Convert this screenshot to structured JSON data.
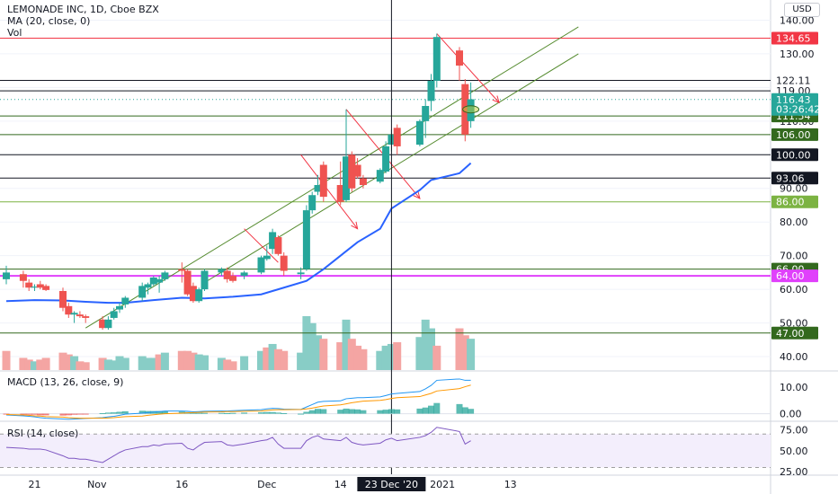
{
  "legend": {
    "title": "LEMONADE INC, 1D, Cboe BZX",
    "ma": "MA (20, close, 0)",
    "vol": "Vol",
    "macd": "MACD (13, 26, close, 9)",
    "rsi": "RSI (14, close)"
  },
  "currency": "USD",
  "colors": {
    "up": "#26a69a",
    "down": "#ef5350",
    "up_vol": "#88cdc6",
    "down_vol": "#f4a5a3",
    "ma": "#2962ff",
    "macd": "#2196f3",
    "signal": "#ff9800",
    "rsi": "#7e57c2",
    "rsi_band": "#f3eefc",
    "green_line": "#33691e",
    "red_line": "#f23645",
    "magenta": "#e040fb"
  },
  "chart_data": [
    {
      "type": "candlestick",
      "title": "LEMONADE INC, 1D, Cboe BZX",
      "ylim": [
        36,
        146
      ],
      "y_ticks": [
        40,
        50,
        60,
        70,
        80,
        90,
        100,
        110,
        120,
        130,
        140
      ],
      "y_tick_labels": [
        "40.00",
        "50.00",
        "60.00",
        "70.00",
        "80.00",
        "90.00",
        "100.00",
        "110.00",
        "120.00",
        "130.00",
        "140.00"
      ],
      "x_labels": [
        {
          "date": "2020-10-21",
          "text": "21"
        },
        {
          "date": "2020-11-01",
          "text": "Nov"
        },
        {
          "date": "2020-11-16",
          "text": "16"
        },
        {
          "date": "2020-12-01",
          "text": "Dec"
        },
        {
          "date": "2020-12-14",
          "text": "14"
        },
        {
          "date": "2021-01-01",
          "text": "2021"
        },
        {
          "date": "2021-01-13",
          "text": "13"
        }
      ],
      "crosshair": {
        "date": "2020-12-23",
        "label": "23 Dec '20"
      },
      "candles": [
        {
          "date": "2020-10-16",
          "open": 63.0,
          "high": 67.0,
          "low": 61.5,
          "close": 65.0
        },
        {
          "date": "2020-10-19",
          "open": 64.5,
          "high": 65.5,
          "low": 60.5,
          "close": 62.5
        },
        {
          "date": "2020-10-20",
          "open": 62.0,
          "high": 63.0,
          "low": 59.5,
          "close": 60.5
        },
        {
          "date": "2020-10-21",
          "open": 60.5,
          "high": 61.5,
          "low": 59.5,
          "close": 60.8
        },
        {
          "date": "2020-10-22",
          "open": 61.5,
          "high": 62.5,
          "low": 60.0,
          "close": 60.5
        },
        {
          "date": "2020-10-23",
          "open": 61.0,
          "high": 61.5,
          "low": 59.5,
          "close": 59.8
        },
        {
          "date": "2020-10-26",
          "open": 59.5,
          "high": 60.5,
          "low": 53.5,
          "close": 54.5
        },
        {
          "date": "2020-10-27",
          "open": 55.0,
          "high": 56.0,
          "low": 51.5,
          "close": 52.5
        },
        {
          "date": "2020-10-28",
          "open": 52.5,
          "high": 53.5,
          "low": 50.0,
          "close": 53.0
        },
        {
          "date": "2020-10-29",
          "open": 52.5,
          "high": 53.5,
          "low": 51.5,
          "close": 52.0
        },
        {
          "date": "2020-10-30",
          "open": 52.0,
          "high": 52.5,
          "low": 50.0,
          "close": 51.5
        },
        {
          "date": "2020-11-02",
          "open": 51.0,
          "high": 52.0,
          "low": 48.0,
          "close": 48.5
        },
        {
          "date": "2020-11-03",
          "open": 48.5,
          "high": 52.0,
          "low": 48.0,
          "close": 51.0
        },
        {
          "date": "2020-11-04",
          "open": 51.5,
          "high": 54.5,
          "low": 51.0,
          "close": 53.5
        },
        {
          "date": "2020-11-05",
          "open": 54.0,
          "high": 56.0,
          "low": 53.0,
          "close": 55.0
        },
        {
          "date": "2020-11-06",
          "open": 55.5,
          "high": 58.0,
          "low": 54.5,
          "close": 57.5
        },
        {
          "date": "2020-11-09",
          "open": 57.5,
          "high": 62.0,
          "low": 56.5,
          "close": 61.0
        },
        {
          "date": "2020-11-10",
          "open": 60.5,
          "high": 62.0,
          "low": 58.5,
          "close": 61.5
        },
        {
          "date": "2020-11-11",
          "open": 61.5,
          "high": 64.0,
          "low": 61.0,
          "close": 63.5
        },
        {
          "date": "2020-11-12",
          "open": 62.0,
          "high": 64.0,
          "low": 59.0,
          "close": 63.0
        },
        {
          "date": "2020-11-13",
          "open": 63.0,
          "high": 65.5,
          "low": 62.5,
          "close": 65.0
        },
        {
          "date": "2020-11-16",
          "open": 66.0,
          "high": 68.0,
          "low": 62.0,
          "close": 65.5
        },
        {
          "date": "2020-11-17",
          "open": 65.5,
          "high": 66.0,
          "low": 58.0,
          "close": 58.5
        },
        {
          "date": "2020-11-18",
          "open": 61.0,
          "high": 62.0,
          "low": 56.0,
          "close": 56.5
        },
        {
          "date": "2020-11-19",
          "open": 56.5,
          "high": 60.5,
          "low": 56.0,
          "close": 60.0
        },
        {
          "date": "2020-11-20",
          "open": 60.0,
          "high": 66.0,
          "low": 59.5,
          "close": 65.5
        },
        {
          "date": "2020-11-23",
          "open": 65.0,
          "high": 66.5,
          "low": 64.0,
          "close": 66.0
        },
        {
          "date": "2020-11-24",
          "open": 65.5,
          "high": 66.5,
          "low": 62.0,
          "close": 63.0
        },
        {
          "date": "2020-11-25",
          "open": 64.0,
          "high": 65.0,
          "low": 62.0,
          "close": 62.5
        },
        {
          "date": "2020-11-27",
          "open": 64.0,
          "high": 65.5,
          "low": 63.0,
          "close": 65.0
        },
        {
          "date": "2020-11-30",
          "open": 65.0,
          "high": 70.0,
          "low": 64.5,
          "close": 69.5
        },
        {
          "date": "2020-12-01",
          "open": 69.0,
          "high": 73.0,
          "low": 68.5,
          "close": 70.0
        },
        {
          "date": "2020-12-02",
          "open": 72.0,
          "high": 78.0,
          "low": 70.5,
          "close": 77.0
        },
        {
          "date": "2020-12-03",
          "open": 75.5,
          "high": 76.0,
          "low": 70.0,
          "close": 70.5
        },
        {
          "date": "2020-12-04",
          "open": 70.0,
          "high": 71.0,
          "low": 64.0,
          "close": 65.5
        },
        {
          "date": "2020-12-07",
          "open": 64.5,
          "high": 66.5,
          "low": 63.0,
          "close": 65.0
        },
        {
          "date": "2020-12-08",
          "open": 66.0,
          "high": 85.0,
          "low": 65.5,
          "close": 83.5
        },
        {
          "date": "2020-12-09",
          "open": 83.5,
          "high": 89.0,
          "low": 82.5,
          "close": 88.0
        },
        {
          "date": "2020-12-10",
          "open": 89.0,
          "high": 94.0,
          "low": 88.0,
          "close": 91.0
        },
        {
          "date": "2020-12-11",
          "open": 97.0,
          "high": 98.0,
          "low": 86.0,
          "close": 87.5
        },
        {
          "date": "2020-12-14",
          "open": 91.0,
          "high": 98.0,
          "low": 85.0,
          "close": 86.0
        },
        {
          "date": "2020-12-15",
          "open": 86.5,
          "high": 113.5,
          "low": 86.0,
          "close": 99.5
        },
        {
          "date": "2020-12-16",
          "open": 100.0,
          "high": 101.0,
          "low": 89.0,
          "close": 90.0
        },
        {
          "date": "2020-12-17",
          "open": 97.0,
          "high": 99.0,
          "low": 93.0,
          "close": 93.5
        },
        {
          "date": "2020-12-18",
          "open": 93.0,
          "high": 94.0,
          "low": 90.0,
          "close": 91.0
        },
        {
          "date": "2020-12-21",
          "open": 92.0,
          "high": 96.0,
          "low": 91.5,
          "close": 95.5
        },
        {
          "date": "2020-12-22",
          "open": 95.0,
          "high": 104.0,
          "low": 94.5,
          "close": 102.5
        },
        {
          "date": "2020-12-23",
          "open": 103.0,
          "high": 107.5,
          "low": 101.0,
          "close": 106.0
        },
        {
          "date": "2020-12-24",
          "open": 108.0,
          "high": 109.0,
          "low": 100.0,
          "close": 102.5
        },
        {
          "date": "2020-12-28",
          "open": 103.0,
          "high": 110.5,
          "low": 102.5,
          "close": 110.0
        },
        {
          "date": "2020-12-29",
          "open": 110.0,
          "high": 116.5,
          "low": 105.0,
          "close": 114.5
        },
        {
          "date": "2020-12-30",
          "open": 116.0,
          "high": 124.0,
          "low": 113.0,
          "close": 122.0
        },
        {
          "date": "2020-12-31",
          "open": 122.0,
          "high": 136.0,
          "low": 120.0,
          "close": 135.0
        },
        {
          "date": "2021-01-04",
          "open": 131.0,
          "high": 132.0,
          "low": 122.0,
          "close": 126.5
        },
        {
          "date": "2021-01-05",
          "open": 121.0,
          "high": 122.5,
          "low": 104.0,
          "close": 106.0
        },
        {
          "date": "2021-01-06",
          "open": 110.0,
          "high": 121.5,
          "low": 108.0,
          "close": 116.5
        }
      ],
      "ma": [
        {
          "date": "2020-10-16",
          "value": 56.5
        },
        {
          "date": "2020-10-21",
          "value": 56.8
        },
        {
          "date": "2020-10-26",
          "value": 56.7
        },
        {
          "date": "2020-10-30",
          "value": 56.3
        },
        {
          "date": "2020-11-03",
          "value": 56.0
        },
        {
          "date": "2020-11-06",
          "value": 56.0
        },
        {
          "date": "2020-11-11",
          "value": 56.8
        },
        {
          "date": "2020-11-16",
          "value": 57.5
        },
        {
          "date": "2020-11-20",
          "value": 57.3
        },
        {
          "date": "2020-11-25",
          "value": 57.8
        },
        {
          "date": "2020-11-30",
          "value": 58.5
        },
        {
          "date": "2020-12-03",
          "value": 60.0
        },
        {
          "date": "2020-12-08",
          "value": 62.5
        },
        {
          "date": "2020-12-11",
          "value": 66.0
        },
        {
          "date": "2020-12-14",
          "value": 70.0
        },
        {
          "date": "2020-12-17",
          "value": 74.0
        },
        {
          "date": "2020-12-21",
          "value": 78.0
        },
        {
          "date": "2020-12-23",
          "value": 84.0
        },
        {
          "date": "2020-12-28",
          "value": 89.5
        },
        {
          "date": "2020-12-30",
          "value": 92.5
        },
        {
          "date": "2021-01-04",
          "value": 94.5
        },
        {
          "date": "2021-01-06",
          "value": 97.5
        }
      ],
      "horizontal_levels": [
        {
          "value": 134.65,
          "label": "134.65",
          "style": "red"
        },
        {
          "value": 122.11,
          "label": "122.11",
          "style": "black"
        },
        {
          "value": 119.0,
          "label": "119.00",
          "style": "black"
        },
        {
          "value": 116.43,
          "label": "116.43",
          "style": "teal"
        },
        {
          "value": 111.54,
          "label": "111.54",
          "style": "green"
        },
        {
          "value": 106.0,
          "label": "106.00",
          "style": "green"
        },
        {
          "value": 100.0,
          "label": "100.00",
          "style": "black"
        },
        {
          "value": 93.06,
          "label": "93.06",
          "style": "black"
        },
        {
          "value": 86.0,
          "label": "86.00",
          "style": "lightgreen"
        },
        {
          "value": 66.0,
          "label": "66.00",
          "style": "green"
        },
        {
          "value": 64.0,
          "label": "64.00",
          "style": "magenta"
        },
        {
          "value": 47.0,
          "label": "47.00",
          "style": "green"
        }
      ],
      "countdown": {
        "value": 113.5,
        "label": "03:26:42"
      },
      "trendlines": [
        {
          "from": {
            "date": "2020-10-30",
            "value": 48.5
          },
          "to": {
            "date": "2021-01-25",
            "value": 138.0
          },
          "color": "green"
        },
        {
          "from": {
            "date": "2020-11-20",
            "value": 62.0
          },
          "to": {
            "date": "2021-01-25",
            "value": 130.0
          },
          "color": "green"
        },
        {
          "from": {
            "date": "2020-11-27",
            "value": 78.0
          },
          "to": {
            "date": "2020-12-03",
            "value": 68.0
          },
          "color": "red",
          "arrow": false
        },
        {
          "from": {
            "date": "2020-12-07",
            "value": 100.0
          },
          "to": {
            "date": "2020-12-17",
            "value": 78.0
          },
          "color": "red",
          "arrow": true
        },
        {
          "from": {
            "date": "2020-12-15",
            "value": 113.5
          },
          "to": {
            "date": "2020-12-28",
            "value": 87.0
          },
          "color": "red",
          "arrow": true
        },
        {
          "from": {
            "date": "2020-12-31",
            "value": 136.0
          },
          "to": {
            "date": "2021-01-11",
            "value": 115.5
          },
          "color": "red",
          "arrow": true
        }
      ],
      "volume": [
        22,
        14,
        12,
        10,
        12,
        14,
        20,
        18,
        16,
        10,
        9,
        14,
        12,
        11,
        16,
        14,
        16,
        14,
        14,
        18,
        20,
        22,
        22,
        20,
        18,
        17,
        14,
        12,
        10,
        16,
        22,
        26,
        30,
        24,
        22,
        20,
        62,
        54,
        40,
        36,
        32,
        58,
        36,
        28,
        24,
        22,
        28,
        30,
        32,
        38,
        58,
        48,
        28,
        48,
        40,
        36
      ],
      "volume_up_days": [
        false,
        false,
        false,
        true,
        false,
        false,
        false,
        false,
        true,
        false,
        false,
        false,
        true,
        true,
        true,
        true,
        true,
        true,
        true,
        false,
        true,
        false,
        false,
        false,
        true,
        true,
        true,
        false,
        false,
        true,
        true,
        false,
        true,
        false,
        false,
        true,
        true,
        true,
        true,
        false,
        false,
        true,
        false,
        false,
        false,
        true,
        true,
        true,
        false,
        true,
        true,
        true,
        false,
        false,
        false,
        true
      ]
    },
    {
      "type": "line",
      "title": "MACD (13, 26, close, 9)",
      "ylim": [
        -2.5,
        15
      ],
      "y_ticks": [
        0,
        10
      ],
      "y_tick_labels": [
        "0.00",
        "10.00"
      ],
      "series": [
        {
          "name": "MACD",
          "values": [
            -0.5,
            -0.8,
            -1.0,
            -1.2,
            -1.5,
            -1.7,
            -2.0,
            -2.1,
            -2.0,
            -1.9,
            -1.8,
            -1.5,
            -1.2,
            -1.0,
            -0.6,
            -0.2,
            0.2,
            0.4,
            0.6,
            0.8,
            1.0,
            1.0,
            0.9,
            0.7,
            0.8,
            0.9,
            1.0,
            1.0,
            1.1,
            1.3,
            1.5,
            1.8,
            2.0,
            1.9,
            1.7,
            1.6,
            2.5,
            3.4,
            4.3,
            4.6,
            4.8,
            5.6,
            5.8,
            6.0,
            6.0,
            6.3,
            6.8,
            7.4,
            7.6,
            8.3,
            9.3,
            10.6,
            12.5,
            13.0,
            12.5,
            12.5
          ]
        },
        {
          "name": "Signal",
          "values": [
            -0.3,
            -0.5,
            -0.6,
            -0.8,
            -0.9,
            -1.1,
            -1.3,
            -1.5,
            -1.6,
            -1.7,
            -1.7,
            -1.7,
            -1.6,
            -1.5,
            -1.3,
            -1.1,
            -0.9,
            -0.6,
            -0.4,
            -0.2,
            0.0,
            0.2,
            0.3,
            0.4,
            0.5,
            0.6,
            0.7,
            0.8,
            0.8,
            0.9,
            1.0,
            1.2,
            1.4,
            1.5,
            1.5,
            1.6,
            1.8,
            2.1,
            2.5,
            2.9,
            3.3,
            3.7,
            4.1,
            4.4,
            4.7,
            5.0,
            5.3,
            5.7,
            6.0,
            6.4,
            7.0,
            7.6,
            8.5,
            9.4,
            10.1,
            10.7
          ]
        }
      ]
    },
    {
      "type": "line",
      "title": "RSI (14, close)",
      "ylim": [
        22,
        82
      ],
      "y_ticks": [
        25,
        50,
        75
      ],
      "y_tick_labels": [
        "25.00",
        "50.00",
        "75.00"
      ],
      "band": [
        30,
        70
      ],
      "series": [
        {
          "name": "RSI",
          "values": [
            54,
            53,
            52,
            52,
            52,
            51,
            44,
            41,
            41,
            40,
            40,
            36,
            40,
            44,
            48,
            51,
            55,
            55,
            57,
            56,
            58,
            59,
            53,
            51,
            56,
            60,
            61,
            57,
            56,
            58,
            62,
            63,
            66,
            58,
            53,
            53,
            62,
            66,
            68,
            64,
            62,
            66,
            60,
            58,
            57,
            59,
            63,
            65,
            62,
            66,
            68,
            72,
            78,
            73,
            58,
            62
          ]
        }
      ]
    }
  ]
}
